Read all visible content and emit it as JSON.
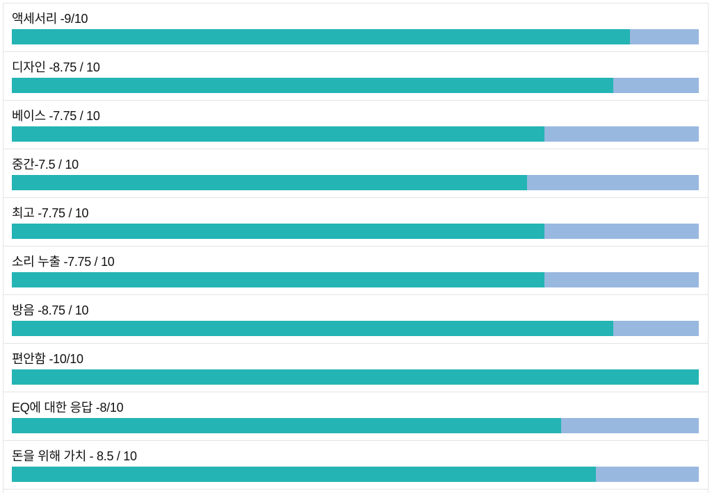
{
  "chart_data": {
    "type": "bar",
    "orientation": "horizontal",
    "max": 10,
    "colors": {
      "fill": "#24b4b4",
      "track": "#99b8df"
    },
    "items": [
      {
        "label": "액세서리 -9/10",
        "value": 9
      },
      {
        "label": "디자인 -8.75 / 10",
        "value": 8.75
      },
      {
        "label": "베이스 -7.75 / 10",
        "value": 7.75
      },
      {
        "label": "중간-7.5 / 10",
        "value": 7.5
      },
      {
        "label": "최고 -7.75 / 10",
        "value": 7.75
      },
      {
        "label": "소리 누출 -7.75 / 10",
        "value": 7.75
      },
      {
        "label": "방음 -8.75 / 10",
        "value": 8.75
      },
      {
        "label": "편안함 -10/10",
        "value": 10
      },
      {
        "label": "EQ에 대한 응답 -8/10",
        "value": 8
      },
      {
        "label": "돈을 위해 가치 - 8.5 / 10",
        "value": 8.5
      }
    ]
  }
}
